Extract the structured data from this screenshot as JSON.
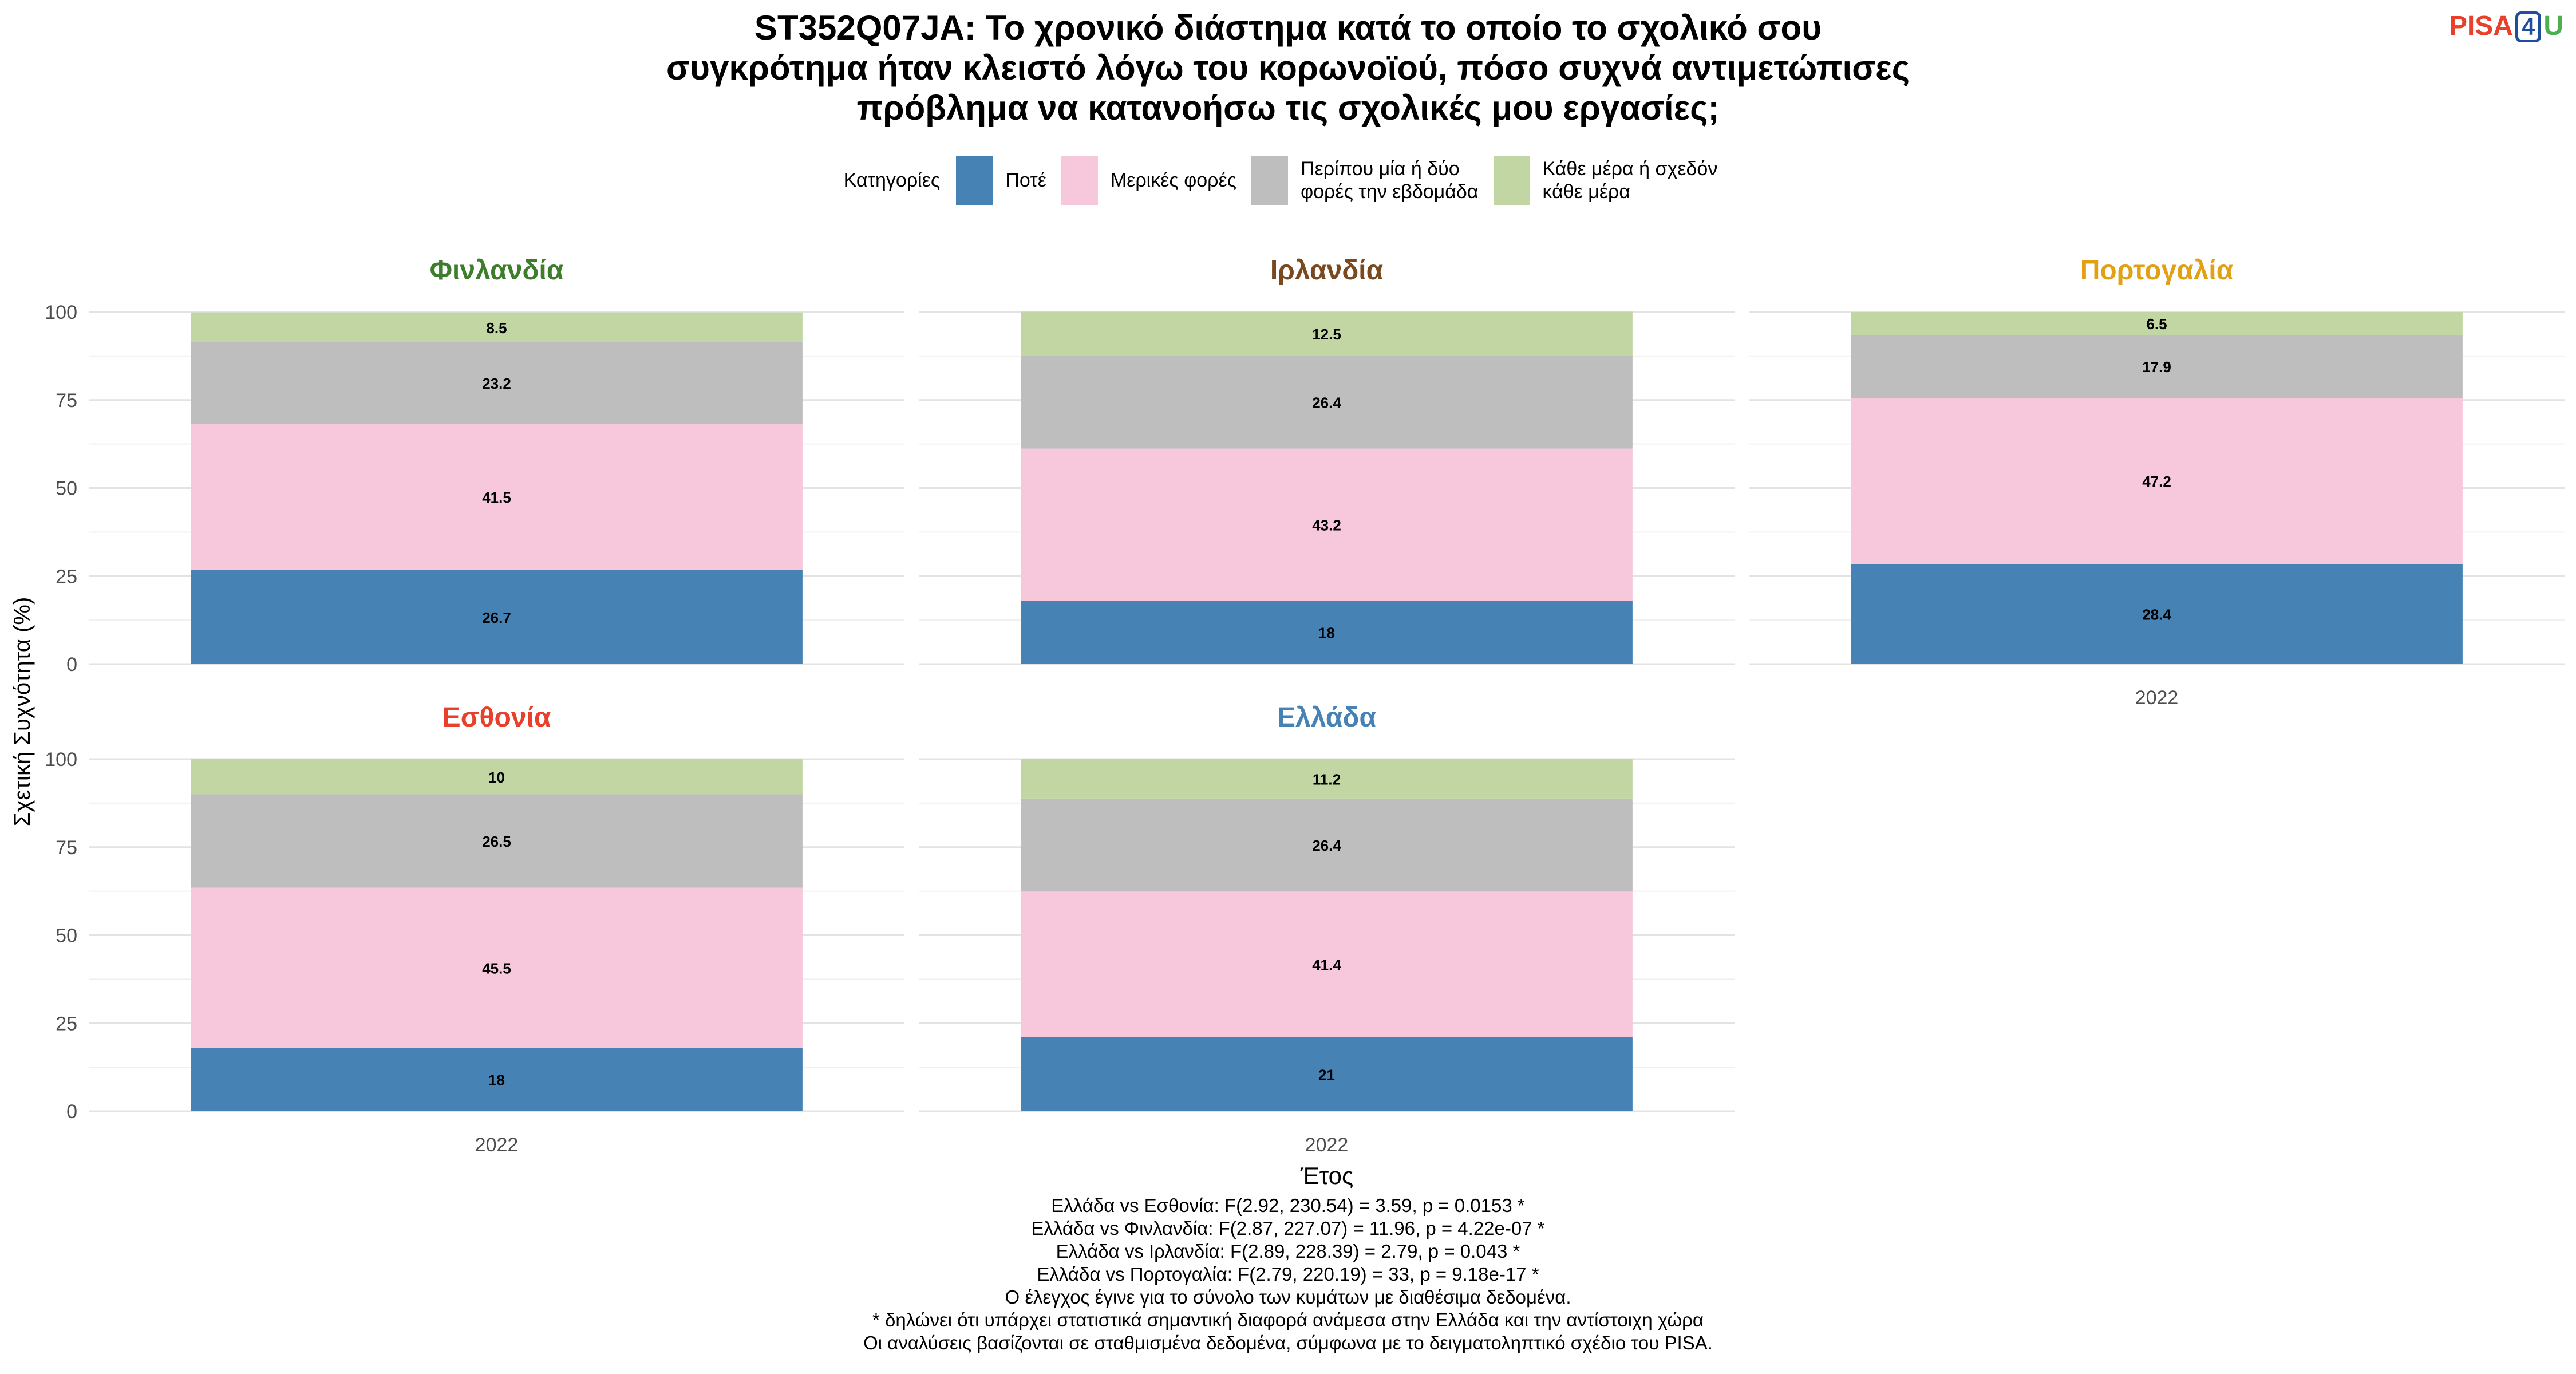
{
  "title_lines": [
    "ST352Q07JA: Το χρονικό διάστημα κατά το οποίο το σχολικό σου",
    "συγκρότημα ήταν κλειστό λόγω του κορωνοϊού, πόσο συχνά αντιμετώπισες",
    "πρόβλημα να κατανοήσω τις σχολικές μου εργασίες;"
  ],
  "logo": {
    "pisa": "PISA",
    "four": "4",
    "u": "U"
  },
  "legend": {
    "title": "Κατηγορίες",
    "items": [
      {
        "label": "Ποτέ",
        "color": "#4682b4"
      },
      {
        "label": "Μερικές φορές",
        "color": "#f7c8dc"
      },
      {
        "label": "Περίπου μία ή δύο φορές την εβδομάδα",
        "lines": [
          "Περίπου μία ή δύο",
          "φορές την εβδομάδα"
        ],
        "color": "#bebebe"
      },
      {
        "label": "Κάθε μέρα ή σχεδόν κάθε μέρα",
        "lines": [
          "Κάθε μέρα ή σχεδόν",
          "κάθε μέρα"
        ],
        "color": "#c2d6a4"
      }
    ]
  },
  "chart_data": {
    "type": "bar",
    "stacked": true,
    "facets": [
      {
        "name": "Φινλανδία",
        "color": "#3e7d2b",
        "x": "2022",
        "values": [
          26.7,
          41.5,
          23.2,
          8.5
        ]
      },
      {
        "name": "Ιρλανδία",
        "color": "#7a4a1e",
        "x": "2022",
        "values": [
          18,
          43.2,
          26.4,
          12.5
        ]
      },
      {
        "name": "Πορτογαλία",
        "color": "#e2a114",
        "x": "2022",
        "values": [
          28.4,
          47.2,
          17.9,
          6.5
        ]
      },
      {
        "name": "Εσθονία",
        "color": "#e8402a",
        "x": "2022",
        "values": [
          18,
          45.5,
          26.5,
          10
        ]
      },
      {
        "name": "Ελλάδα",
        "color": "#4682b4",
        "x": "2022",
        "values": [
          21,
          41.4,
          26.4,
          11.2
        ]
      }
    ],
    "categories": [
      "Ποτέ",
      "Μερικές φορές",
      "Περίπου μία ή δύο φορές την εβδομάδα",
      "Κάθε μέρα ή σχεδόν κάθε μέρα"
    ],
    "ylabel": "Σχετική Συχνότητα (%)",
    "xlabel": "Έτος",
    "ylim": [
      0,
      100
    ],
    "yticks": [
      0,
      25,
      50,
      75,
      100
    ],
    "grid": true,
    "legend_position": "top"
  },
  "notes": [
    "Ελλάδα vs Εσθονία: F(2.92, 230.54) = 3.59, p = 0.0153 *",
    "Ελλάδα vs Φινλανδία: F(2.87, 227.07) = 11.96, p = 4.22e-07 *",
    "Ελλάδα vs Ιρλανδία: F(2.89, 228.39) = 2.79, p = 0.043 *",
    "Ελλάδα vs Πορτογαλία: F(2.79, 220.19) = 33, p = 9.18e-17 *",
    "Ο έλεγχος έγινε για το σύνολο των κυμάτων με διαθέσιμα δεδομένα.",
    "* δηλώνει ότι υπάρχει στατιστικά σημαντική διαφορά ανάμεσα στην Ελλάδα και την αντίστοιχη χώρα",
    "Οι αναλύσεις βασίζονται σε σταθμισμένα δεδομένα, σύμφωνα με το δειγματοληπτικό σχέδιο του PISA."
  ]
}
